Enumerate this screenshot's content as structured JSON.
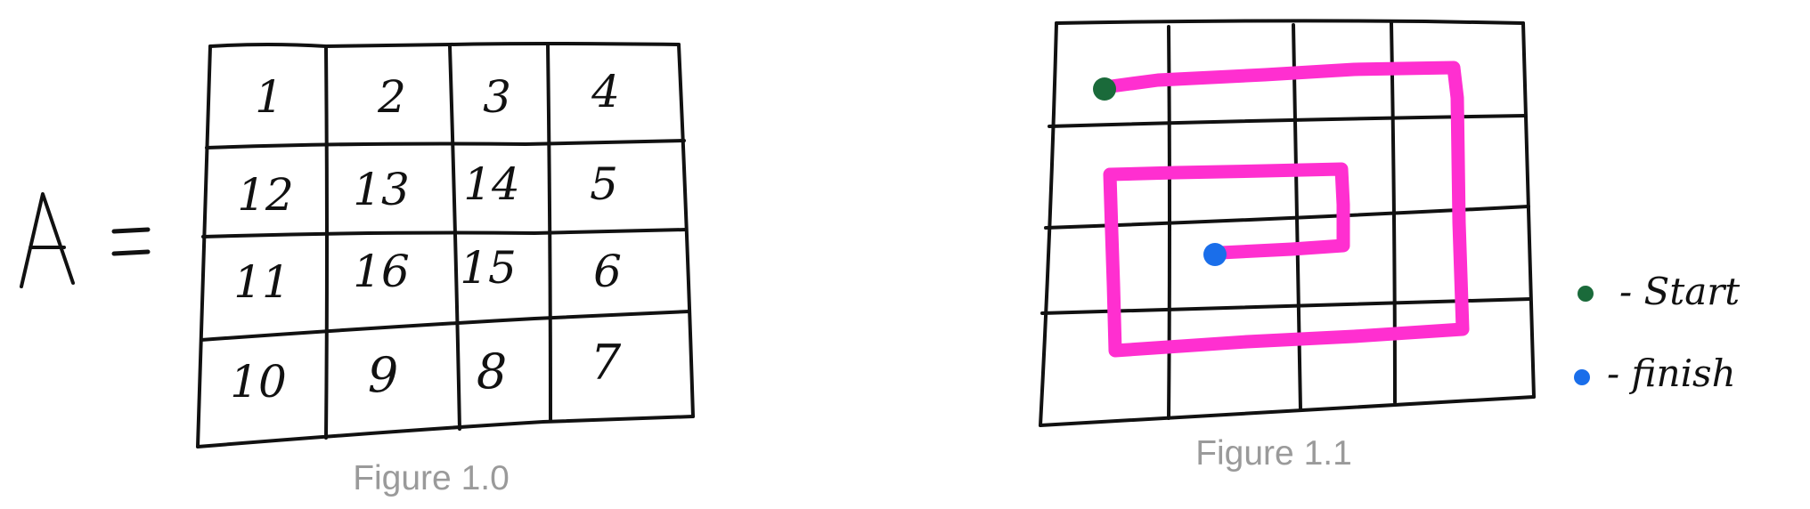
{
  "colors": {
    "ink": "#111111",
    "path": "#ff2fd0",
    "start": "#1a6a3a",
    "finish": "#1a6eea",
    "caption": "#9a9a9a"
  },
  "figure_1_0": {
    "matrix_symbol": "A",
    "equals_sign": "=",
    "cells": [
      [
        "1",
        "2",
        "3",
        "4"
      ],
      [
        "12",
        "13",
        "14",
        "5"
      ],
      [
        "11",
        "16",
        "15",
        "6"
      ],
      [
        "10",
        "9",
        "8",
        "7"
      ]
    ],
    "caption": "Figure 1.0"
  },
  "figure_1_1": {
    "grid_rows": 4,
    "grid_cols": 4,
    "legend": {
      "start_label": "- Start",
      "finish_label": "- finish"
    },
    "caption": "Figure 1.1"
  }
}
